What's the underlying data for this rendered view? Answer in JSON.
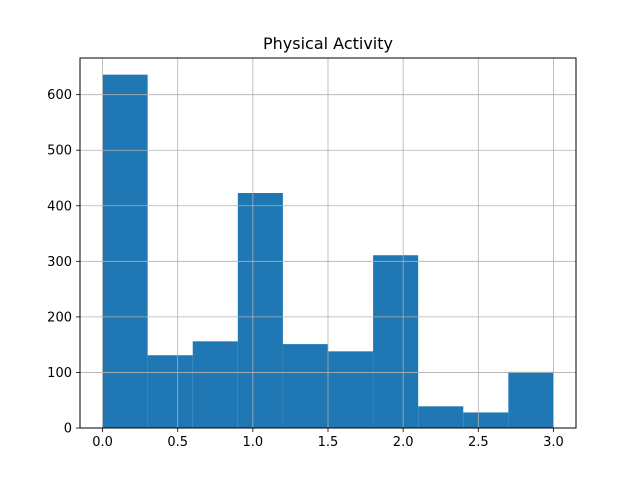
{
  "chart_data": {
    "type": "bar",
    "title": "Physical Activity",
    "xlabel": "",
    "ylabel": "",
    "xlim": [
      -0.15,
      3.15
    ],
    "ylim": [
      0,
      666
    ],
    "bin_edges": [
      0.0,
      0.3,
      0.6,
      0.9,
      1.2,
      1.5,
      1.8,
      2.1,
      2.4,
      2.7,
      3.0
    ],
    "values": [
      636,
      131,
      156,
      423,
      151,
      138,
      311,
      39,
      28,
      101
    ],
    "x_ticks": [
      0.0,
      0.5,
      1.0,
      1.5,
      2.0,
      2.5,
      3.0
    ],
    "x_tick_labels": [
      "0.0",
      "0.5",
      "1.0",
      "1.5",
      "2.0",
      "2.5",
      "3.0"
    ],
    "y_ticks": [
      0,
      100,
      200,
      300,
      400,
      500,
      600
    ],
    "y_tick_labels": [
      "0",
      "100",
      "200",
      "300",
      "400",
      "500",
      "600"
    ],
    "grid": true,
    "bar_color": "#1f77b4",
    "grid_color": "#b0b0b0"
  }
}
